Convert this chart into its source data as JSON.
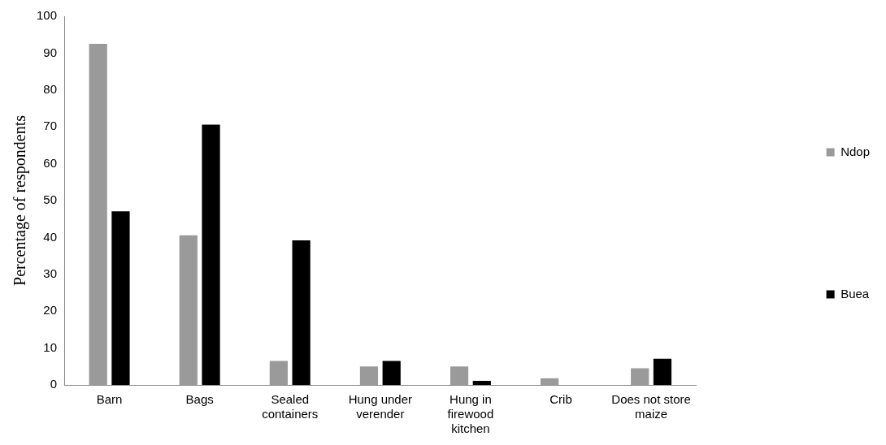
{
  "chart_data": {
    "type": "bar",
    "ylabel": "Percentage of respondents",
    "categories": [
      "Barn",
      "Bags",
      "Sealed containers",
      "Hung under verender",
      "Hung in firewood kitchen",
      "Crib",
      "Does not store maize"
    ],
    "series": [
      {
        "name": "Ndop",
        "color": "#9a9a9a",
        "values": [
          92.5,
          40.6,
          6.5,
          5.0,
          5.0,
          1.8,
          4.5
        ]
      },
      {
        "name": "Buea",
        "color": "#000000",
        "values": [
          47.1,
          70.6,
          39.2,
          6.5,
          1.1,
          0,
          7.1
        ]
      }
    ],
    "ylim": [
      0,
      100
    ],
    "yticks": [
      0,
      10,
      20,
      30,
      40,
      50,
      60,
      70,
      80,
      90,
      100
    ],
    "grid": false,
    "legend": "right"
  }
}
